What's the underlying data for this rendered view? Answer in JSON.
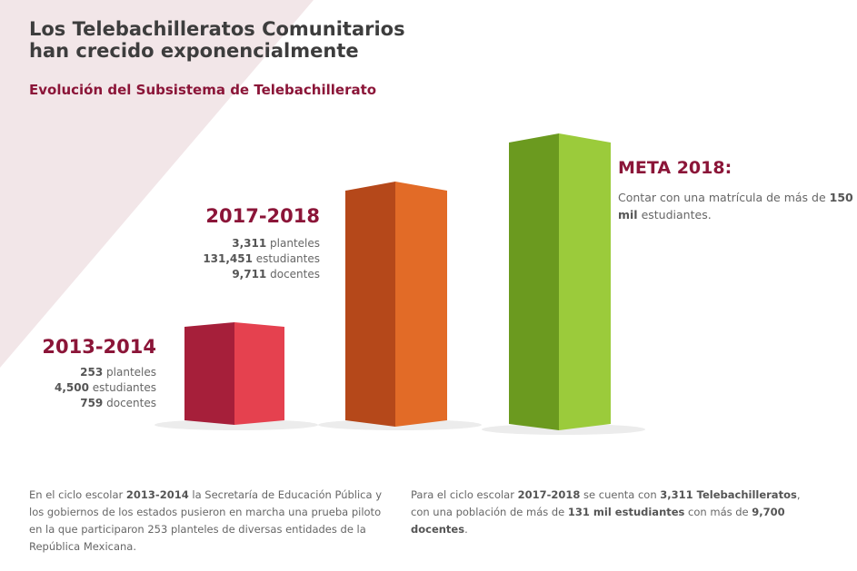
{
  "header": {
    "title_line1": "Los Telebachilleratos Comunitarios",
    "title_line2": "han crecido exponencialmente",
    "subtitle": "Evolución del Subsistema de Telebachillerato"
  },
  "periods": [
    {
      "label": "2013-2014",
      "stats": [
        [
          {
            "text": "253",
            "bold": true
          },
          {
            "text": " planteles",
            "bold": false
          }
        ],
        [
          {
            "text": "4,500",
            "bold": true
          },
          {
            "text": " estudiantes",
            "bold": false
          }
        ],
        [
          {
            "text": "759",
            "bold": true
          },
          {
            "text": " docentes",
            "bold": false
          }
        ]
      ]
    },
    {
      "label": "2017-2018",
      "stats": [
        [
          {
            "text": "3,311",
            "bold": true
          },
          {
            "text": " planteles",
            "bold": false
          }
        ],
        [
          {
            "text": "131,451",
            "bold": true
          },
          {
            "text": " estudiantes",
            "bold": false
          }
        ],
        [
          {
            "text": "9,711",
            "bold": true
          },
          {
            "text": " docentes",
            "bold": false
          }
        ]
      ]
    }
  ],
  "goal": {
    "title": "META 2018:",
    "text": [
      {
        "text": "Contar con una matrícula de más de ",
        "bold": false
      },
      {
        "text": "150 mil",
        "bold": true
      },
      {
        "text": " estudiantes.",
        "bold": false
      }
    ]
  },
  "paragraphs": [
    [
      {
        "text": "En el ciclo escolar ",
        "bold": false
      },
      {
        "text": "2013-2014",
        "bold": true
      },
      {
        "text": " la Secretaría de Educación Pública y los gobiernos de los estados pusieron en marcha una prueba piloto en la que participaron 253 planteles de diversas entidades de la República Mexicana.",
        "bold": false
      }
    ],
    [
      {
        "text": "Para el ciclo escolar ",
        "bold": false
      },
      {
        "text": "2017-2018",
        "bold": true
      },
      {
        "text": " se cuenta con ",
        "bold": false
      },
      {
        "text": "3,311 Telebachilleratos",
        "bold": true
      },
      {
        "text": ", con una población de más de ",
        "bold": false
      },
      {
        "text": "131 mil estudiantes",
        "bold": true
      },
      {
        "text": " con más de ",
        "bold": false
      },
      {
        "text": "9,700 docentes",
        "bold": true
      },
      {
        "text": ".",
        "bold": false
      }
    ]
  ]
}
